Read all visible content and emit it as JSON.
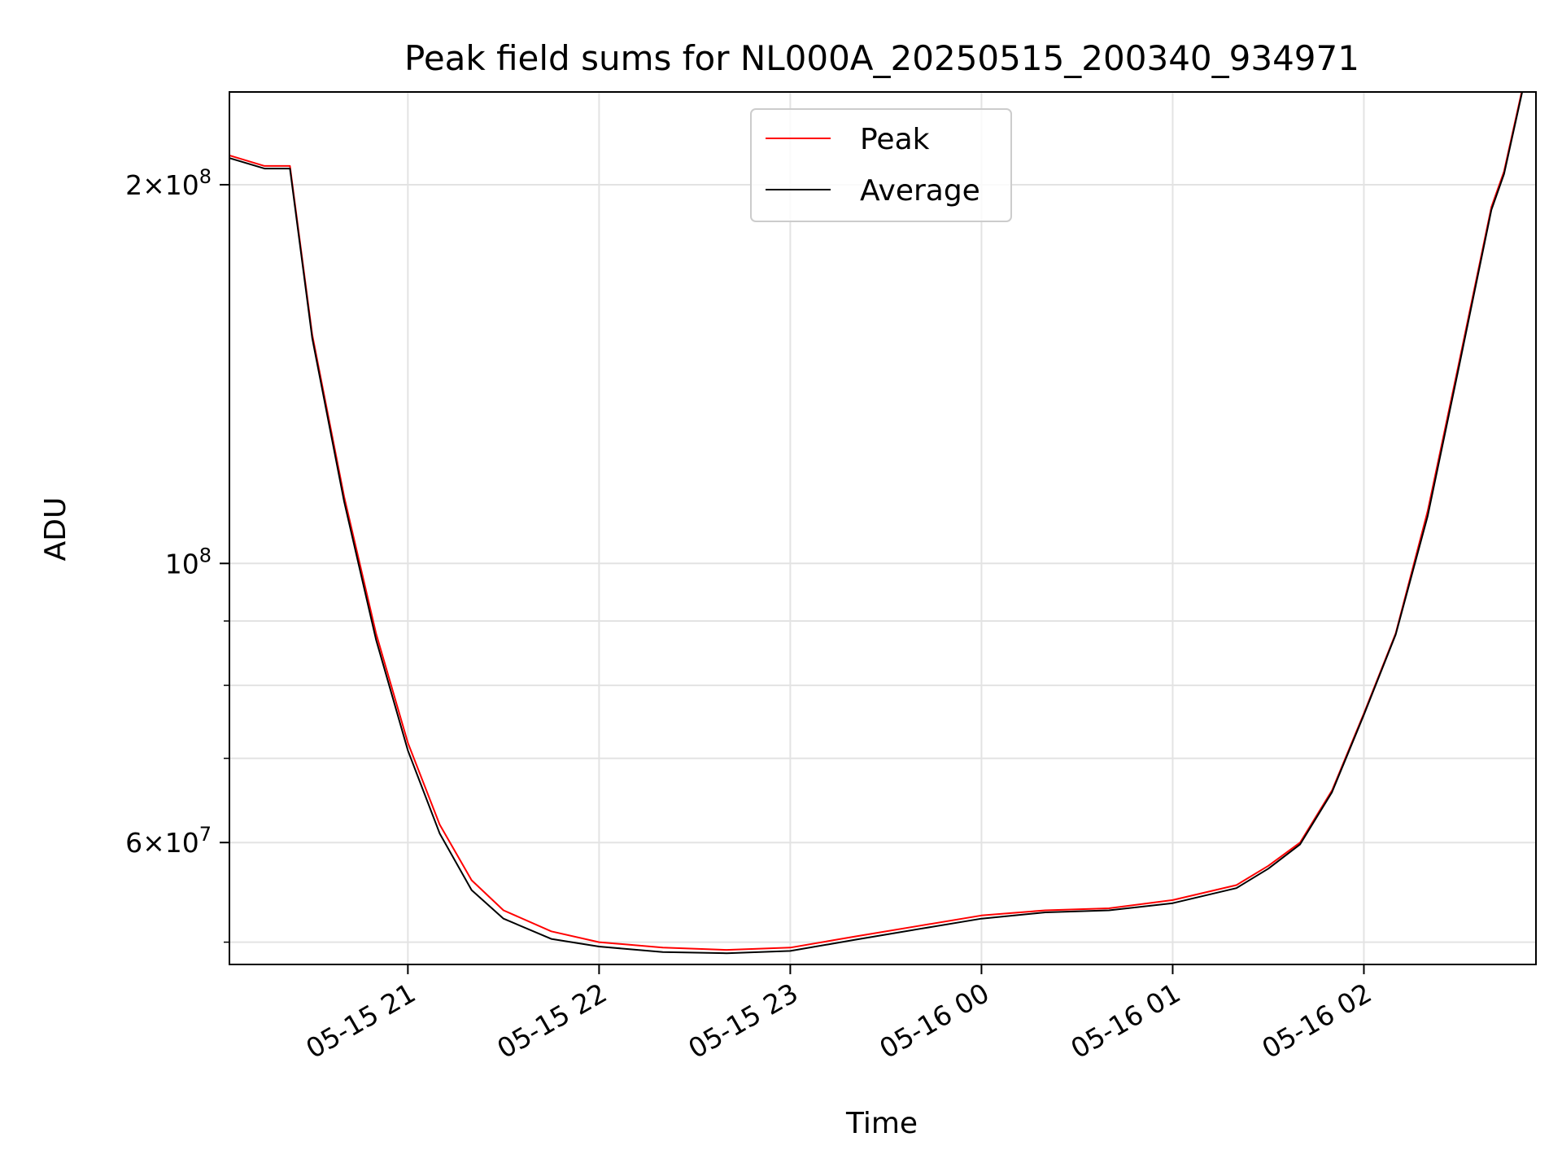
{
  "chart_data": {
    "type": "line",
    "title": "Peak field sums for NL000A_20250515_200340_934971",
    "xlabel": "Time",
    "ylabel": "ADU",
    "yscale": "log",
    "xlim": [
      "2025-05-15 20:04",
      "2025-05-16 02:54"
    ],
    "ylim": [
      48000000,
      237000000
    ],
    "grid": true,
    "legend_position": "upper-center",
    "x_ticks": [
      {
        "value": "2025-05-15 21:00",
        "label": "05-15 21"
      },
      {
        "value": "2025-05-15 22:00",
        "label": "05-15 22"
      },
      {
        "value": "2025-05-15 23:00",
        "label": "05-15 23"
      },
      {
        "value": "2025-05-16 00:00",
        "label": "05-16 00"
      },
      {
        "value": "2025-05-16 01:00",
        "label": "05-16 01"
      },
      {
        "value": "2025-05-16 02:00",
        "label": "05-16 02"
      }
    ],
    "y_major_ticks": [
      {
        "value": 60000000,
        "mantissa": "6",
        "exponent": "7"
      },
      {
        "value": 100000000,
        "mantissa": "",
        "exponent": "8"
      },
      {
        "value": 200000000,
        "mantissa": "2",
        "exponent": "8"
      }
    ],
    "y_minor_ticks": [
      50000000,
      70000000,
      80000000,
      90000000
    ],
    "series": [
      {
        "name": "Peak",
        "color": "#ff0000",
        "x": [
          "2025-05-15 20:04",
          "2025-05-15 20:15",
          "2025-05-15 20:23",
          "2025-05-15 20:30",
          "2025-05-15 20:40",
          "2025-05-15 20:50",
          "2025-05-15 21:00",
          "2025-05-15 21:10",
          "2025-05-15 21:20",
          "2025-05-15 21:30",
          "2025-05-15 21:45",
          "2025-05-15 22:00",
          "2025-05-15 22:20",
          "2025-05-15 22:40",
          "2025-05-15 23:00",
          "2025-05-15 23:20",
          "2025-05-15 23:40",
          "2025-05-16 00:00",
          "2025-05-16 00:20",
          "2025-05-16 00:40",
          "2025-05-16 01:00",
          "2025-05-16 01:20",
          "2025-05-16 01:30",
          "2025-05-16 01:40",
          "2025-05-16 01:50",
          "2025-05-16 02:00",
          "2025-05-16 02:10",
          "2025-05-16 02:20",
          "2025-05-16 02:30",
          "2025-05-16 02:40",
          "2025-05-16 02:44",
          "2025-05-16 02:50"
        ],
        "y": [
          211000000,
          207000000,
          207000000,
          152000000,
          113000000,
          88000000,
          72000000,
          62000000,
          56000000,
          53000000,
          51000000,
          50000000,
          49500000,
          49300000,
          49500000,
          50500000,
          51500000,
          52500000,
          53000000,
          53200000,
          54000000,
          55500000,
          57500000,
          60000000,
          66000000,
          76000000,
          88000000,
          110000000,
          145000000,
          192000000,
          205000000,
          240000000
        ]
      },
      {
        "name": "Average",
        "color": "#000000",
        "x": [
          "2025-05-15 20:04",
          "2025-05-15 20:15",
          "2025-05-15 20:23",
          "2025-05-15 20:30",
          "2025-05-15 20:40",
          "2025-05-15 20:50",
          "2025-05-15 21:00",
          "2025-05-15 21:10",
          "2025-05-15 21:20",
          "2025-05-15 21:30",
          "2025-05-15 21:45",
          "2025-05-15 22:00",
          "2025-05-15 22:20",
          "2025-05-15 22:40",
          "2025-05-15 23:00",
          "2025-05-15 23:20",
          "2025-05-15 23:40",
          "2025-05-16 00:00",
          "2025-05-16 00:20",
          "2025-05-16 00:40",
          "2025-05-16 01:00",
          "2025-05-16 01:20",
          "2025-05-16 01:30",
          "2025-05-16 01:40",
          "2025-05-16 01:50",
          "2025-05-16 02:00",
          "2025-05-16 02:10",
          "2025-05-16 02:20",
          "2025-05-16 02:30",
          "2025-05-16 02:40",
          "2025-05-16 02:44",
          "2025-05-16 02:50"
        ],
        "y": [
          210000000,
          206000000,
          206000000,
          151000000,
          112000000,
          87000000,
          71000000,
          61000000,
          55000000,
          52200000,
          50300000,
          49600000,
          49100000,
          49000000,
          49200000,
          50200000,
          51200000,
          52200000,
          52800000,
          53000000,
          53700000,
          55200000,
          57200000,
          59800000,
          65800000,
          75800000,
          87800000,
          109000000,
          144000000,
          191000000,
          204000000,
          239000000
        ]
      }
    ]
  }
}
